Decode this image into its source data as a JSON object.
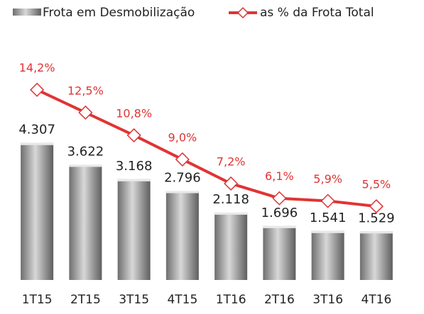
{
  "chart_data": {
    "type": "bar_line",
    "categories": [
      "1T15",
      "2T15",
      "3T15",
      "4T15",
      "1T16",
      "2T16",
      "3T16",
      "4T16"
    ],
    "series": [
      {
        "name": "Frota em Desmobilização",
        "type": "bar",
        "color": "#9a9a9a",
        "values": [
          4307,
          3622,
          3168,
          2796,
          2118,
          1696,
          1541,
          1529
        ],
        "value_labels": [
          "4.307",
          "3.622",
          "3.168",
          "2.796",
          "2.118",
          "1.696",
          "1.541",
          "1.529"
        ]
      },
      {
        "name": "as % da Frota Total",
        "type": "line",
        "color": "#e03434",
        "axis": "y2",
        "values": [
          14.2,
          12.5,
          10.8,
          9.0,
          7.2,
          6.1,
          5.9,
          5.5
        ],
        "value_labels": [
          "14,2%",
          "12,5%",
          "10,8%",
          "9,0%",
          "7,2%",
          "6,1%",
          "5,9%",
          "5,5%"
        ]
      }
    ],
    "ylim": [
      0,
      8000
    ],
    "y2lim": [
      0,
      19
    ],
    "legend": "top"
  }
}
